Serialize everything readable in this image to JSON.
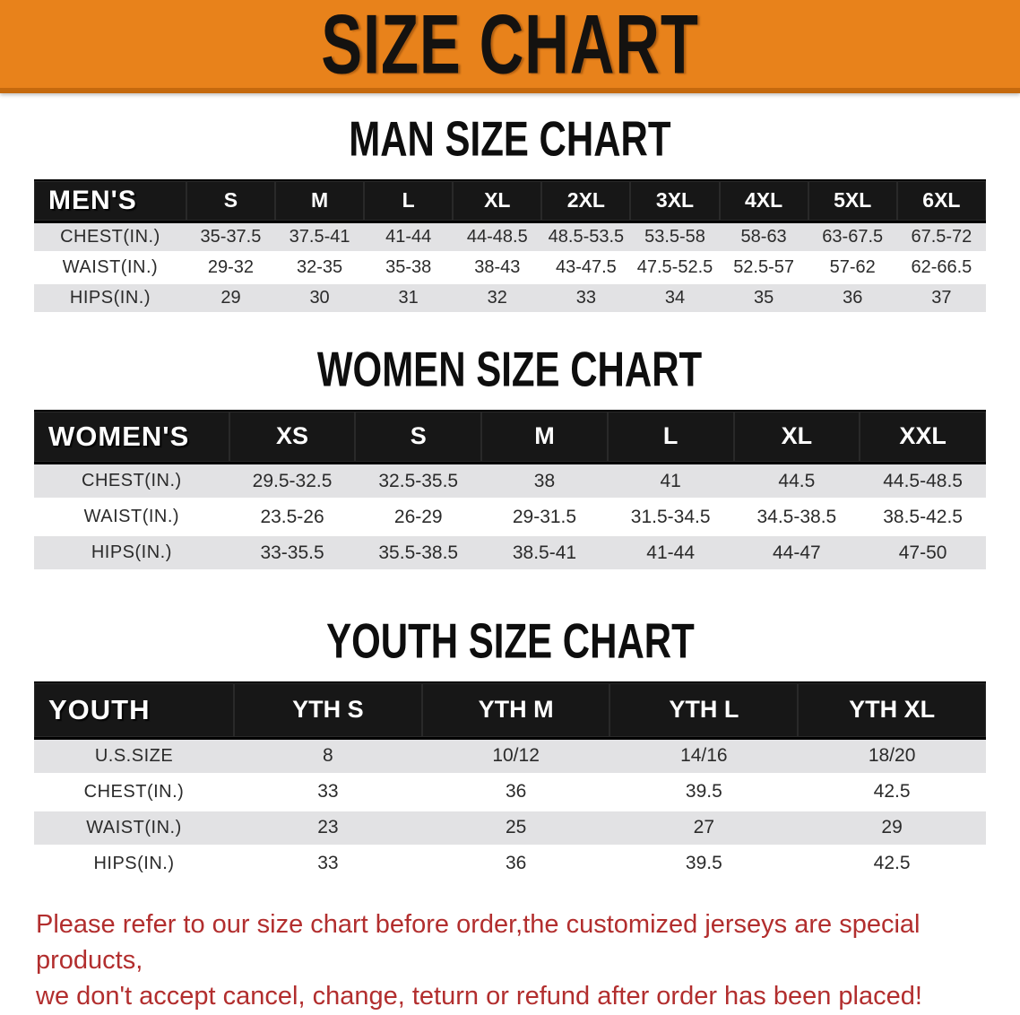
{
  "banner": {
    "title": "SIZE CHART"
  },
  "colors": {
    "banner_bg": "#e8821b",
    "banner_edge": "#c5690d",
    "header_bg": "#171717",
    "header_text": "#ffffff",
    "stripe": "#e2e2e4",
    "cell_text": "#2b2b2b",
    "disclaimer_text": "#b22e2e"
  },
  "sections": [
    {
      "heading": "MAN SIZE CHART",
      "group_label": "MEN'S",
      "columns": [
        "S",
        "M",
        "L",
        "XL",
        "2XL",
        "3XL",
        "4XL",
        "5XL",
        "6XL"
      ],
      "rows": [
        {
          "label": "CHEST(IN.)",
          "values": [
            "35-37.5",
            "37.5-41",
            "41-44",
            "44-48.5",
            "48.5-53.5",
            "53.5-58",
            "58-63",
            "63-67.5",
            "67.5-72"
          ]
        },
        {
          "label": "WAIST(IN.)",
          "values": [
            "29-32",
            "32-35",
            "35-38",
            "38-43",
            "43-47.5",
            "47.5-52.5",
            "52.5-57",
            "57-62",
            "62-66.5"
          ]
        },
        {
          "label": "HIPS(IN.)",
          "values": [
            "29",
            "30",
            "31",
            "32",
            "33",
            "34",
            "35",
            "36",
            "37"
          ]
        }
      ]
    },
    {
      "heading": "WOMEN SIZE CHART",
      "group_label": "WOMEN'S",
      "columns": [
        "XS",
        "S",
        "M",
        "L",
        "XL",
        "XXL"
      ],
      "rows": [
        {
          "label": "CHEST(IN.)",
          "values": [
            "29.5-32.5",
            "32.5-35.5",
            "38",
            "41",
            "44.5",
            "44.5-48.5"
          ]
        },
        {
          "label": "WAIST(IN.)",
          "values": [
            "23.5-26",
            "26-29",
            "29-31.5",
            "31.5-34.5",
            "34.5-38.5",
            "38.5-42.5"
          ]
        },
        {
          "label": "HIPS(IN.)",
          "values": [
            "33-35.5",
            "35.5-38.5",
            "38.5-41",
            "41-44",
            "44-47",
            "47-50"
          ]
        }
      ]
    },
    {
      "heading": "YOUTH SIZE CHART",
      "group_label": "YOUTH",
      "columns": [
        "YTH S",
        "YTH M",
        "YTH L",
        "YTH XL"
      ],
      "rows": [
        {
          "label": "U.S.SIZE",
          "values": [
            "8",
            "10/12",
            "14/16",
            "18/20"
          ]
        },
        {
          "label": "CHEST(IN.)",
          "values": [
            "33",
            "36",
            "39.5",
            "42.5"
          ]
        },
        {
          "label": "WAIST(IN.)",
          "values": [
            "23",
            "25",
            "27",
            "29"
          ]
        },
        {
          "label": "HIPS(IN.)",
          "values": [
            "33",
            "36",
            "39.5",
            "42.5"
          ]
        }
      ]
    }
  ],
  "disclaimer": {
    "lines": [
      "Please refer to our size chart before order,the customized jerseys are special products,",
      "we don't accept cancel, change, teturn or refund after order has been placed!"
    ]
  }
}
